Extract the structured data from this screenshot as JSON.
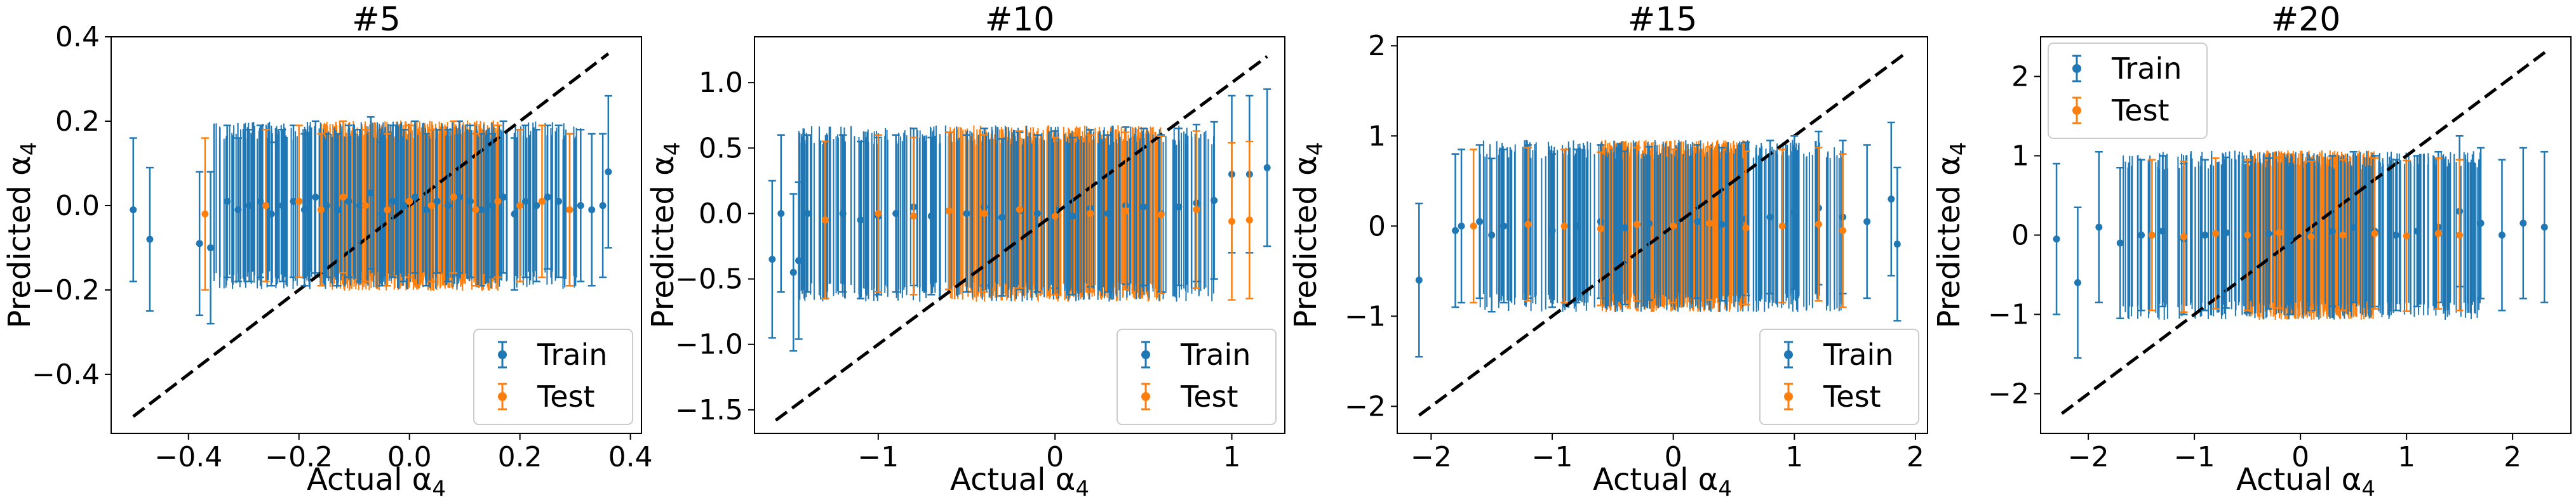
{
  "chart_data": [
    {
      "type": "scatter",
      "title": "#5",
      "xlabel": "Actual",
      "ylabel": "Predicted",
      "label_symbol": "α",
      "label_subscript": "4",
      "xlim": [
        -0.54,
        0.42
      ],
      "ylim": [
        -0.54,
        0.4
      ],
      "xticks": [
        -0.4,
        -0.2,
        0.0,
        0.2,
        0.4
      ],
      "xtick_labels": [
        "−0.4",
        "−0.2",
        "0.0",
        "0.2",
        "0.4"
      ],
      "yticks": [
        -0.4,
        -0.2,
        0.0,
        0.2,
        0.4
      ],
      "ytick_labels": [
        "−0.4",
        "−0.2",
        "0.0",
        "0.2",
        "0.4"
      ],
      "diagonal": [
        -0.5,
        0.36
      ],
      "legend": {
        "position": "lower right",
        "entries": [
          "Train",
          "Test"
        ]
      },
      "series": [
        {
          "name": "Train",
          "color": "#1f77b4",
          "x": [
            -0.5,
            -0.47,
            -0.38,
            -0.36,
            -0.33,
            -0.31,
            -0.29,
            -0.27,
            -0.25,
            -0.23,
            -0.21,
            -0.19,
            -0.17,
            -0.15,
            -0.13,
            -0.11,
            -0.09,
            -0.07,
            -0.05,
            -0.03,
            -0.01,
            0.01,
            0.03,
            0.05,
            0.07,
            0.09,
            0.11,
            0.13,
            0.15,
            0.17,
            0.19,
            0.21,
            0.23,
            0.25,
            0.27,
            0.29,
            0.31,
            0.33,
            0.35,
            0.36
          ],
          "y": [
            -0.01,
            -0.08,
            -0.09,
            -0.1,
            0.01,
            -0.01,
            0.0,
            0.01,
            -0.02,
            0.0,
            0.01,
            -0.01,
            0.02,
            0.0,
            -0.01,
            0.01,
            0.0,
            0.03,
            -0.02,
            0.01,
            0.0,
            0.02,
            -0.01,
            0.01,
            0.0,
            0.02,
            0.01,
            -0.01,
            0.0,
            0.02,
            -0.02,
            0.01,
            0.0,
            0.02,
            0.01,
            -0.01,
            0.0,
            -0.01,
            0.0,
            0.08
          ],
          "err": [
            0.17,
            0.17,
            0.17,
            0.18,
            0.18,
            0.17,
            0.18,
            0.18,
            0.17,
            0.18,
            0.18,
            0.18,
            0.18,
            0.17,
            0.18,
            0.18,
            0.18,
            0.18,
            0.17,
            0.18,
            0.18,
            0.18,
            0.18,
            0.17,
            0.18,
            0.18,
            0.18,
            0.18,
            0.17,
            0.18,
            0.18,
            0.18,
            0.18,
            0.17,
            0.18,
            0.18,
            0.18,
            0.18,
            0.17,
            0.18
          ]
        },
        {
          "name": "Test",
          "color": "#ff7f0e",
          "x": [
            -0.37,
            -0.26,
            -0.2,
            -0.16,
            -0.12,
            -0.08,
            -0.04,
            0.0,
            0.04,
            0.08,
            0.12,
            0.16,
            0.2,
            0.24,
            0.29
          ],
          "y": [
            -0.02,
            0.0,
            0.01,
            -0.01,
            0.02,
            0.0,
            -0.01,
            0.01,
            0.0,
            0.02,
            -0.01,
            0.01,
            0.0,
            0.01,
            -0.01
          ],
          "err": [
            0.18,
            0.18,
            0.18,
            0.18,
            0.18,
            0.18,
            0.18,
            0.18,
            0.18,
            0.18,
            0.18,
            0.18,
            0.18,
            0.18,
            0.18
          ]
        }
      ]
    },
    {
      "type": "scatter",
      "title": "#10",
      "xlabel": "Actual",
      "ylabel": "Predicted",
      "label_symbol": "α",
      "label_subscript": "4",
      "xlim": [
        -1.7,
        1.3
      ],
      "ylim": [
        -1.68,
        1.35
      ],
      "xticks": [
        -1,
        0,
        1
      ],
      "xtick_labels": [
        "−1",
        "0",
        "1"
      ],
      "yticks": [
        -1.5,
        -1.0,
        -0.5,
        0.0,
        0.5,
        1.0
      ],
      "ytick_labels": [
        "−1.5",
        "−1.0",
        "−0.5",
        "0.0",
        "0.5",
        "1.0"
      ],
      "diagonal": [
        -1.58,
        1.2
      ],
      "legend": {
        "position": "lower right",
        "entries": [
          "Train",
          "Test"
        ]
      },
      "series": [
        {
          "name": "Train",
          "color": "#1f77b4",
          "x": [
            -1.6,
            -1.55,
            -1.48,
            -1.45,
            -1.4,
            -1.3,
            -1.2,
            -1.1,
            -1.0,
            -0.9,
            -0.8,
            -0.7,
            -0.6,
            -0.5,
            -0.4,
            -0.3,
            -0.2,
            -0.1,
            0.0,
            0.1,
            0.2,
            0.3,
            0.4,
            0.5,
            0.6,
            0.7,
            0.8,
            0.9,
            1.0,
            1.1,
            1.2
          ],
          "y": [
            -0.35,
            0.0,
            -0.45,
            -0.36,
            0.0,
            -0.05,
            0.0,
            -0.05,
            -0.02,
            0.0,
            0.05,
            -0.02,
            0.02,
            0.0,
            0.05,
            -0.03,
            0.02,
            0.0,
            0.03,
            -0.02,
            0.04,
            0.0,
            0.06,
            0.05,
            0.0,
            0.05,
            0.08,
            0.1,
            0.3,
            0.3,
            0.35
          ],
          "err": [
            0.6,
            0.6,
            0.6,
            0.6,
            0.6,
            0.6,
            0.6,
            0.6,
            0.6,
            0.6,
            0.6,
            0.6,
            0.6,
            0.6,
            0.6,
            0.6,
            0.6,
            0.6,
            0.6,
            0.6,
            0.6,
            0.6,
            0.6,
            0.6,
            0.6,
            0.6,
            0.6,
            0.6,
            0.6,
            0.6,
            0.6
          ]
        },
        {
          "name": "Test",
          "color": "#ff7f0e",
          "x": [
            -1.3,
            -1.0,
            -0.8,
            -0.6,
            -0.4,
            -0.2,
            0.0,
            0.2,
            0.4,
            0.6,
            0.8,
            1.0,
            1.1
          ],
          "y": [
            -0.05,
            0.0,
            -0.02,
            0.02,
            0.0,
            0.03,
            -0.02,
            0.0,
            0.02,
            -0.01,
            0.03,
            -0.06,
            -0.05
          ],
          "err": [
            0.6,
            0.6,
            0.6,
            0.6,
            0.6,
            0.6,
            0.6,
            0.6,
            0.6,
            0.6,
            0.6,
            0.6,
            0.6
          ]
        }
      ]
    },
    {
      "type": "scatter",
      "title": "#15",
      "xlabel": "Actual",
      "ylabel": "Predicted",
      "label_symbol": "α",
      "label_subscript": "4",
      "xlim": [
        -2.28,
        2.1
      ],
      "ylim": [
        -2.3,
        2.1
      ],
      "xticks": [
        -2,
        -1,
        0,
        1,
        2
      ],
      "xtick_labels": [
        "−2",
        "−1",
        "0",
        "1",
        "2"
      ],
      "yticks": [
        -2,
        -1,
        0,
        1,
        2
      ],
      "ytick_labels": [
        "−2",
        "−1",
        "0",
        "1",
        "2"
      ],
      "diagonal": [
        -2.1,
        1.9
      ],
      "legend": {
        "position": "lower right",
        "entries": [
          "Train",
          "Test"
        ]
      },
      "series": [
        {
          "name": "Train",
          "color": "#1f77b4",
          "x": [
            -2.1,
            -1.8,
            -1.75,
            -1.6,
            -1.5,
            -1.4,
            -1.2,
            -1.0,
            -0.8,
            -0.6,
            -0.4,
            -0.2,
            0.0,
            0.2,
            0.4,
            0.6,
            0.8,
            1.0,
            1.2,
            1.4,
            1.6,
            1.8,
            1.85
          ],
          "y": [
            -0.6,
            -0.05,
            0.0,
            0.05,
            -0.1,
            0.0,
            0.05,
            -0.05,
            0.0,
            0.05,
            -0.02,
            0.03,
            0.0,
            0.05,
            0.02,
            0.08,
            0.1,
            0.15,
            0.2,
            0.1,
            0.05,
            0.3,
            -0.2
          ],
          "err": [
            0.85,
            0.85,
            0.85,
            0.85,
            0.85,
            0.85,
            0.85,
            0.85,
            0.85,
            0.85,
            0.85,
            0.85,
            0.85,
            0.85,
            0.85,
            0.85,
            0.85,
            0.85,
            0.85,
            0.85,
            0.85,
            0.85,
            0.85
          ]
        },
        {
          "name": "Test",
          "color": "#ff7f0e",
          "x": [
            -1.65,
            -1.2,
            -0.9,
            -0.6,
            -0.3,
            0.0,
            0.3,
            0.6,
            0.9,
            1.2,
            1.4
          ],
          "y": [
            0.0,
            0.02,
            0.0,
            -0.03,
            0.02,
            0.0,
            0.03,
            -0.02,
            0.0,
            0.02,
            -0.05
          ],
          "err": [
            0.85,
            0.85,
            0.85,
            0.85,
            0.85,
            0.85,
            0.85,
            0.85,
            0.85,
            0.85,
            0.85
          ]
        }
      ]
    },
    {
      "type": "scatter",
      "title": "#20",
      "xlabel": "Actual",
      "ylabel": "Predicted",
      "label_symbol": "α",
      "label_subscript": "4",
      "xlim": [
        -2.45,
        2.55
      ],
      "ylim": [
        -2.5,
        2.5
      ],
      "xticks": [
        -2,
        -1,
        0,
        1,
        2
      ],
      "xtick_labels": [
        "−2",
        "−1",
        "0",
        "1",
        "2"
      ],
      "yticks": [
        -2,
        -1,
        0,
        1,
        2
      ],
      "ytick_labels": [
        "−2",
        "−1",
        "0",
        "1",
        "2"
      ],
      "diagonal": [
        -2.25,
        2.35
      ],
      "legend": {
        "position": "upper left",
        "entries": [
          "Train",
          "Test"
        ]
      },
      "series": [
        {
          "name": "Train",
          "color": "#1f77b4",
          "x": [
            -2.3,
            -2.1,
            -1.9,
            -1.7,
            -1.5,
            -1.3,
            -1.1,
            -0.9,
            -0.7,
            -0.5,
            -0.3,
            -0.1,
            0.1,
            0.3,
            0.5,
            0.7,
            0.9,
            1.1,
            1.3,
            1.5,
            1.7,
            1.9,
            2.1,
            2.3
          ],
          "y": [
            -0.05,
            -0.6,
            0.1,
            -0.1,
            0.0,
            0.05,
            -0.05,
            0.0,
            0.03,
            -0.03,
            0.02,
            -0.05,
            0.0,
            0.05,
            0.1,
            0.05,
            0.0,
            0.05,
            0.1,
            0.3,
            0.15,
            0.0,
            0.15,
            0.1
          ],
          "err": [
            0.95,
            0.95,
            0.95,
            0.95,
            0.95,
            0.95,
            0.95,
            0.95,
            0.95,
            0.95,
            0.95,
            0.95,
            0.95,
            0.95,
            0.95,
            0.95,
            0.95,
            0.95,
            0.95,
            0.95,
            0.95,
            0.95,
            0.95,
            0.95
          ]
        },
        {
          "name": "Test",
          "color": "#ff7f0e",
          "x": [
            -1.4,
            -1.1,
            -0.8,
            -0.5,
            -0.2,
            0.1,
            0.4,
            0.7,
            1.0,
            1.3,
            1.5
          ],
          "y": [
            0.0,
            -0.02,
            0.02,
            0.0,
            0.03,
            -0.02,
            0.0,
            0.02,
            -0.01,
            0.02,
            0.0
          ],
          "err": [
            0.95,
            0.95,
            0.95,
            0.95,
            0.95,
            0.95,
            0.95,
            0.95,
            0.95,
            0.95,
            0.95
          ]
        }
      ]
    }
  ]
}
